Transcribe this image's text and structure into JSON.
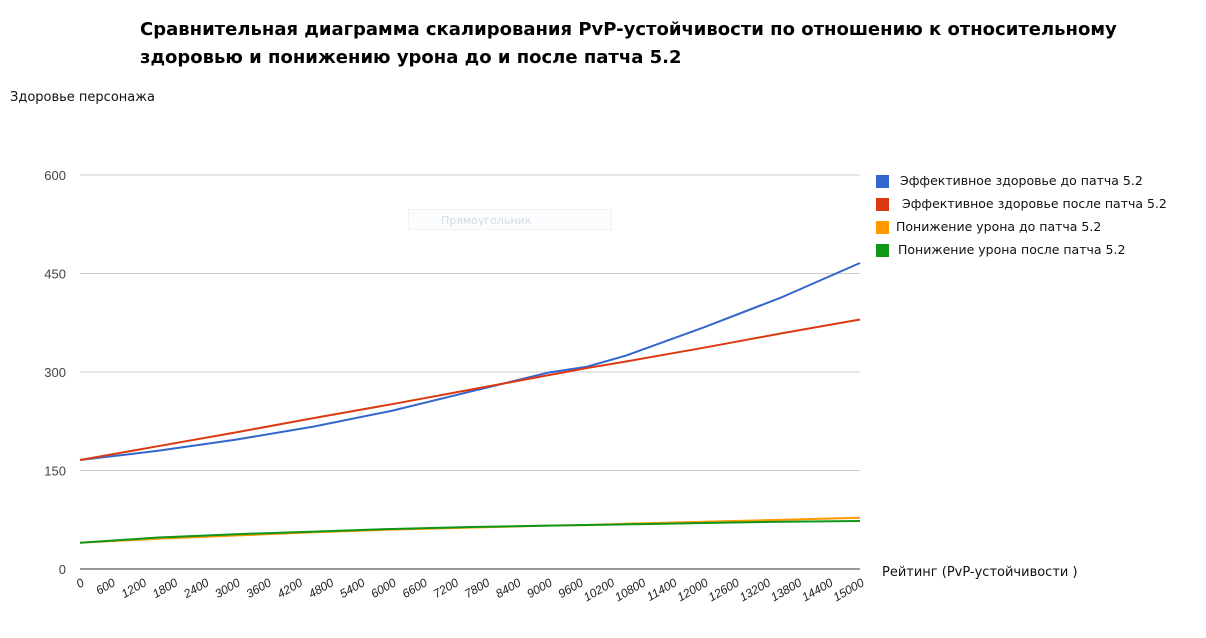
{
  "chart_data": {
    "type": "line",
    "title": "Сравнительная диаграмма скалирования PvP-устойчивости по отношению к относительному здоровью и понижению урона до и после патча 5.2",
    "ylabel": "Здоровье персонажа",
    "xlabel": "Рейтинг (PvP-устойчивости )",
    "ylim": [
      0,
      600
    ],
    "yticks": [
      "0",
      "150",
      "300",
      "450",
      "600"
    ],
    "xlim": [
      0,
      15000
    ],
    "xtick_labels": [
      "0",
      "600",
      "1200",
      "1800",
      "2400",
      "3000",
      "3600",
      "4200",
      "4800",
      "5400",
      "6000",
      "6600",
      "7200",
      "7800",
      "8400",
      "9000",
      "9600",
      "10200",
      "10800",
      "11400",
      "12000",
      "12600",
      "13200",
      "13800",
      "14400",
      "15000"
    ],
    "x": [
      0,
      1500,
      3000,
      4500,
      6000,
      7500,
      9000,
      9750,
      10500,
      12000,
      13500,
      15000
    ],
    "series": [
      {
        "name": "Эффективное здоровье до патча 5.2",
        "color": "#3366cc",
        "values": [
          166,
          180,
          197,
          217,
          241,
          270,
          299,
          308,
          325,
          368,
          414,
          466
        ]
      },
      {
        "name": "Эффективное здоровье после патча 5.2",
        "color": "#dc3912",
        "values": [
          166,
          187,
          208,
          230,
          251,
          273,
          295,
          306,
          316,
          337,
          359,
          380
        ]
      },
      {
        "name": "Понижение урона до патча 5.2",
        "color": "#ff9900",
        "values": [
          40,
          46,
          51,
          56,
          60,
          63,
          66,
          67,
          69,
          72,
          75,
          78
        ]
      },
      {
        "name": "Понижение урона после патча 5.2",
        "color": "#109618",
        "values": [
          40,
          48,
          53,
          57,
          61,
          64,
          66,
          67,
          68,
          70,
          72,
          73
        ]
      }
    ],
    "annotation": "Прямоугольник",
    "grid": true,
    "legend_position": "right"
  }
}
